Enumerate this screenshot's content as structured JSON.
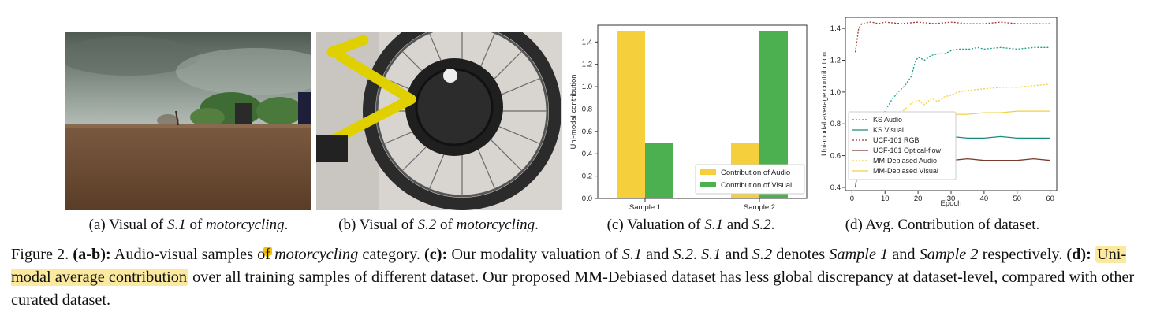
{
  "subcaptions": {
    "a": {
      "prefix": "(a) Visual of ",
      "sample": "S.1",
      "mid": " of ",
      "cat": "motorcycling",
      "end": "."
    },
    "b": {
      "prefix": "(b) Visual of ",
      "sample": "S.2",
      "mid": " of ",
      "cat": "motorcycling",
      "end": "."
    },
    "c": {
      "prefix": "(c) Valuation of ",
      "s1": "S.1",
      "mid": " and ",
      "s2": "S.2",
      "end": "."
    },
    "d": {
      "text": "(d) Avg. Contribution of dataset."
    }
  },
  "caption": {
    "fig": "Figure 2. ",
    "ab_label": "(a-b):",
    "ab_text": " Audio-visual samples of ",
    "ab_cat": "motorcycling",
    "ab_end": " category. ",
    "c_label": "(c):",
    "c_text": " Our modality valuation of ",
    "c_s1": "S.1",
    "c_and": " and ",
    "c_s2": "S.2",
    "c_dot": ". ",
    "c_s1b": "S.1",
    "c_and2": " and ",
    "c_s2b": "S.2",
    "c_denotes": " denotes ",
    "c_sample1": "Sample 1",
    "c_and3": " and ",
    "c_sample2": "Sample 2",
    "c_resp": " respectively. ",
    "d_label": "(d):",
    "d_highlight": "Uni-modal average contribution",
    "d_text": " over all training samples of different dataset. Our proposed MM-Debiased dataset has less global discrepancy at dataset-level, compared with other curated dataset."
  },
  "colors": {
    "audio": "#f6cf3c",
    "visual": "#4caf50"
  },
  "chart_data": [
    {
      "type": "bar",
      "categories": [
        "Sample 1",
        "Sample 2"
      ],
      "series": [
        {
          "name": "Contribution of Audio",
          "values": [
            1.5,
            0.5
          ],
          "color": "#f6cf3c"
        },
        {
          "name": "Contribution of Visual",
          "values": [
            0.5,
            1.5
          ],
          "color": "#4caf50"
        }
      ],
      "ylabel": "Uni-modal contribution",
      "ylim": [
        0,
        1.55
      ],
      "yticks": [
        0.0,
        0.2,
        0.4,
        0.6,
        0.8,
        1.0,
        1.2,
        1.4
      ],
      "legend": "bottom-right",
      "grid": false
    },
    {
      "type": "line",
      "xlabel": "Epoch",
      "ylabel": "Uni-modal average contribution",
      "xlim": [
        -2,
        62
      ],
      "ylim": [
        0.38,
        1.47
      ],
      "xticks": [
        0,
        10,
        20,
        30,
        40,
        50,
        60
      ],
      "yticks": [
        0.4,
        0.6,
        0.8,
        1.0,
        1.2,
        1.4
      ],
      "legend": "lower-left",
      "grid": false,
      "series": [
        {
          "name": "KS Audio",
          "color": "#1a9e8a",
          "dash": "dotted",
          "x": [
            1,
            2,
            3,
            4,
            5,
            6,
            7,
            8,
            9,
            10,
            12,
            14,
            16,
            18,
            19,
            20,
            22,
            24,
            26,
            28,
            30,
            32,
            34,
            36,
            38,
            40,
            45,
            50,
            55,
            60
          ],
          "y": [
            0.52,
            0.55,
            0.6,
            0.65,
            0.68,
            0.72,
            0.76,
            0.8,
            0.84,
            0.88,
            0.95,
            1.0,
            1.04,
            1.1,
            1.18,
            1.22,
            1.2,
            1.23,
            1.24,
            1.24,
            1.26,
            1.27,
            1.27,
            1.27,
            1.28,
            1.27,
            1.28,
            1.27,
            1.28,
            1.28
          ]
        },
        {
          "name": "KS Visual",
          "color": "#1a8c7a",
          "dash": "solid",
          "x": [
            1,
            2,
            3,
            4,
            5,
            6,
            8,
            10,
            12,
            14,
            16,
            18,
            20,
            22,
            24,
            26,
            28,
            30,
            35,
            40,
            45,
            50,
            55,
            60
          ],
          "y": [
            0.5,
            0.52,
            0.55,
            0.58,
            0.6,
            0.62,
            0.64,
            0.66,
            0.68,
            0.69,
            0.7,
            0.72,
            0.73,
            0.71,
            0.72,
            0.71,
            0.7,
            0.72,
            0.71,
            0.71,
            0.72,
            0.71,
            0.71,
            0.71
          ]
        },
        {
          "name": "UCF-101 RGB",
          "color": "#9b3b2b",
          "dash": "dotted",
          "x": [
            1,
            2,
            3,
            4,
            5,
            6,
            8,
            10,
            15,
            20,
            25,
            30,
            35,
            40,
            45,
            50,
            55,
            60
          ],
          "y": [
            1.25,
            1.4,
            1.43,
            1.43,
            1.44,
            1.44,
            1.43,
            1.44,
            1.43,
            1.44,
            1.43,
            1.44,
            1.43,
            1.43,
            1.44,
            1.43,
            1.43,
            1.43
          ]
        },
        {
          "name": "UCF-101 Optical-flow",
          "color": "#7a3b2b",
          "dash": "solid",
          "x": [
            1,
            2,
            3,
            4,
            5,
            6,
            8,
            10,
            15,
            20,
            25,
            30,
            35,
            40,
            45,
            50,
            55,
            60
          ],
          "y": [
            0.4,
            0.55,
            0.57,
            0.57,
            0.58,
            0.57,
            0.58,
            0.57,
            0.58,
            0.57,
            0.58,
            0.57,
            0.58,
            0.57,
            0.57,
            0.57,
            0.58,
            0.57
          ]
        },
        {
          "name": "MM-Debiased Audio",
          "color": "#f6cf3c",
          "dash": "dotted",
          "x": [
            1,
            2,
            3,
            4,
            5,
            6,
            8,
            10,
            12,
            14,
            16,
            18,
            20,
            22,
            24,
            26,
            28,
            30,
            32,
            35,
            40,
            45,
            50,
            55,
            60
          ],
          "y": [
            0.5,
            0.55,
            0.6,
            0.64,
            0.67,
            0.7,
            0.74,
            0.78,
            0.83,
            0.86,
            0.89,
            0.93,
            0.95,
            0.92,
            0.96,
            0.94,
            0.97,
            0.98,
            1.0,
            1.01,
            1.02,
            1.03,
            1.03,
            1.04,
            1.05
          ]
        },
        {
          "name": "MM-Debiased Visual",
          "color": "#f6cf3c",
          "dash": "solid",
          "x": [
            1,
            2,
            3,
            4,
            5,
            6,
            8,
            10,
            12,
            14,
            16,
            18,
            20,
            22,
            24,
            26,
            28,
            30,
            32,
            35,
            40,
            45,
            50,
            55,
            60
          ],
          "y": [
            0.52,
            0.55,
            0.58,
            0.6,
            0.63,
            0.66,
            0.7,
            0.74,
            0.73,
            0.77,
            0.78,
            0.76,
            0.8,
            0.79,
            0.78,
            0.78,
            0.8,
            0.84,
            0.86,
            0.86,
            0.87,
            0.87,
            0.88,
            0.88,
            0.88
          ]
        }
      ]
    }
  ]
}
